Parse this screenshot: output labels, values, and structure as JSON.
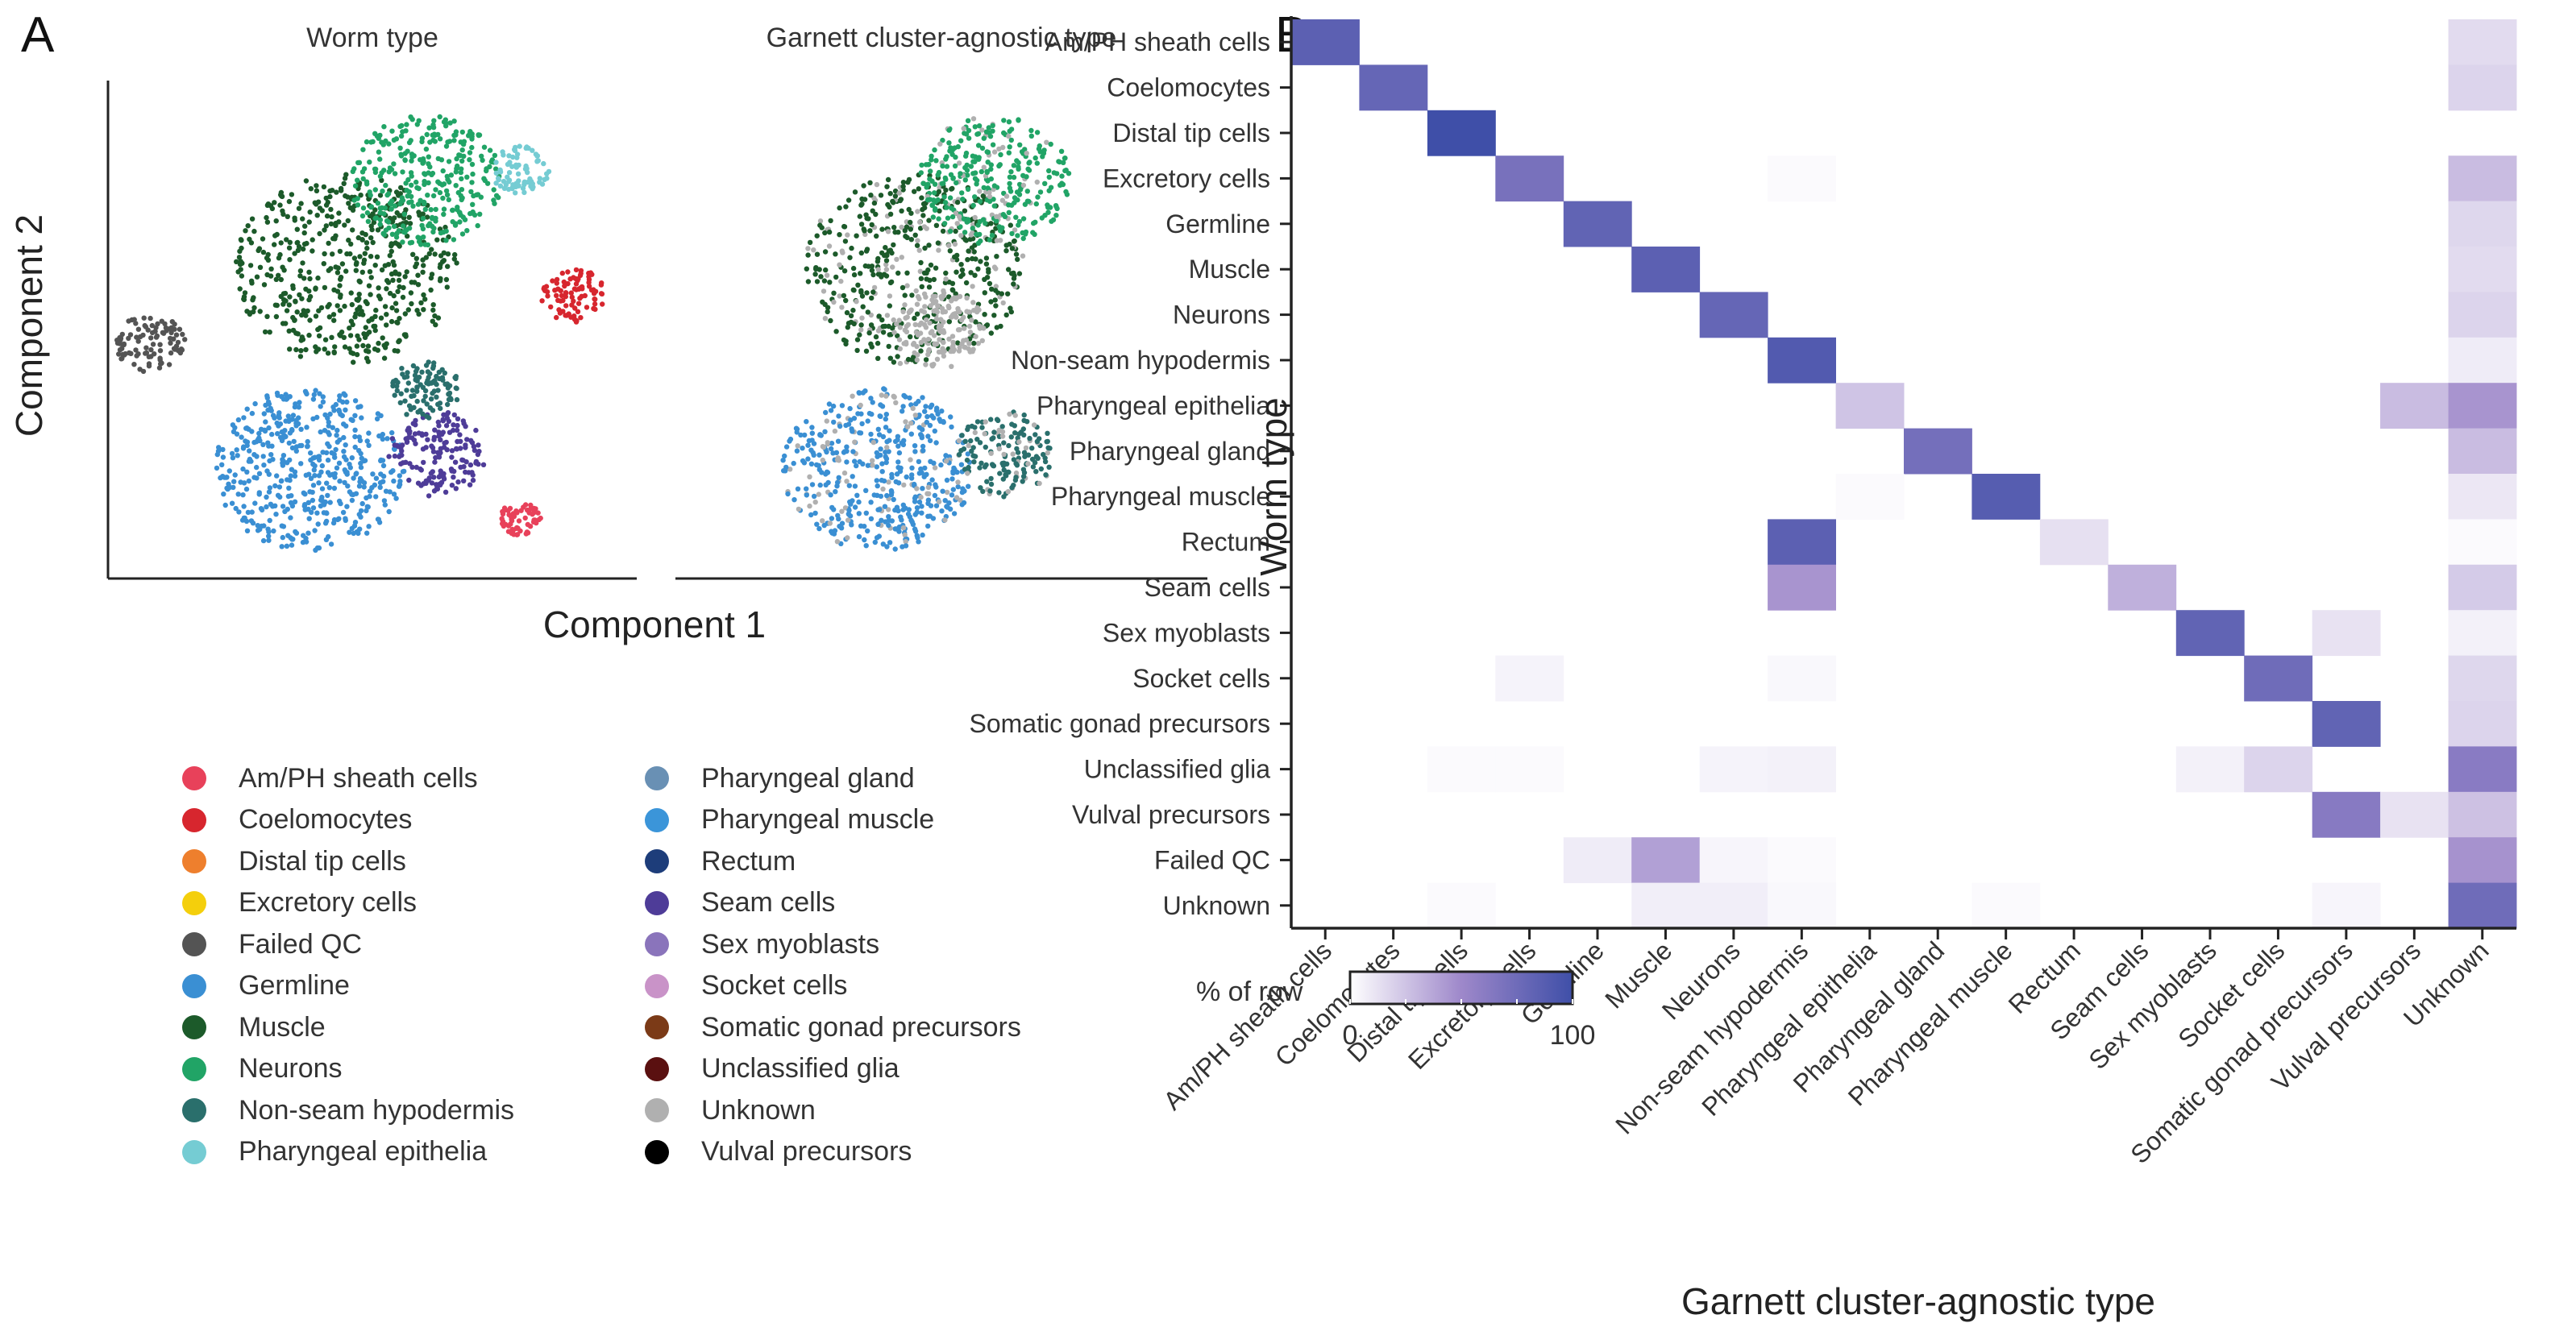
{
  "panel_a": {
    "label": "A",
    "titles": [
      "Worm type",
      "Garnett cluster-agnostic type"
    ],
    "xlabel": "Component 1",
    "ylabel": "Component 2"
  },
  "panel_b": {
    "label": "B",
    "colorbar": {
      "title": "% of row",
      "min_label": "0",
      "max_label": "100",
      "low_color": "#ffffff",
      "high_color": "#3f4fa8"
    }
  },
  "legend": {
    "items": [
      {
        "label": "Am/PH sheath cells",
        "color": "#e8415a"
      },
      {
        "label": "Coelomocytes",
        "color": "#d7262e"
      },
      {
        "label": "Distal tip cells",
        "color": "#ee7f2d"
      },
      {
        "label": "Excretory cells",
        "color": "#f4cf0c"
      },
      {
        "label": "Failed QC",
        "color": "#545454"
      },
      {
        "label": "Germline",
        "color": "#3a8fd3"
      },
      {
        "label": "Muscle",
        "color": "#1c5a2a"
      },
      {
        "label": "Neurons",
        "color": "#21a466"
      },
      {
        "label": "Non-seam hypodermis",
        "color": "#2a6f6c"
      },
      {
        "label": "Pharyngeal epithelia",
        "color": "#75ccd3"
      },
      {
        "label": "Pharyngeal gland",
        "color": "#6990b4"
      },
      {
        "label": "Pharyngeal muscle",
        "color": "#3b95d9"
      },
      {
        "label": "Rectum",
        "color": "#1d3d7a"
      },
      {
        "label": "Seam cells",
        "color": "#4e3c98"
      },
      {
        "label": "Sex myoblasts",
        "color": "#8a74bb"
      },
      {
        "label": "Socket cells",
        "color": "#c993c8"
      },
      {
        "label": "Somatic gonad precursors",
        "color": "#7b3a17"
      },
      {
        "label": "Unclassified glia",
        "color": "#5a1010"
      },
      {
        "label": "Unknown",
        "color": "#b0b0b0"
      },
      {
        "label": "Vulval precursors",
        "color": "#000000"
      }
    ]
  },
  "chart_data": [
    {
      "type": "scatter",
      "title": "Worm type",
      "xlabel": "Component 1",
      "ylabel": "Component 2",
      "colored_by": "Worm type",
      "clusters": [
        {
          "label": "Muscle",
          "x": 45,
          "y": 62,
          "size": 3000
        },
        {
          "label": "Neurons",
          "x": 60,
          "y": 80,
          "size": 1400
        },
        {
          "label": "Germline",
          "x": 38,
          "y": 22,
          "size": 2200
        },
        {
          "label": "Seam cells",
          "x": 62,
          "y": 25,
          "size": 600
        },
        {
          "label": "Failed QC",
          "x": 8,
          "y": 47,
          "size": 300
        },
        {
          "label": "Coelomocytes",
          "x": 88,
          "y": 57,
          "size": 250
        },
        {
          "label": "Pharyngeal epithelia",
          "x": 78,
          "y": 82,
          "size": 200
        },
        {
          "label": "Non-seam hypodermis",
          "x": 60,
          "y": 38,
          "size": 300
        },
        {
          "label": "Am/PH sheath cells",
          "x": 78,
          "y": 12,
          "size": 100
        }
      ]
    },
    {
      "type": "scatter",
      "title": "Garnett cluster-agnostic type",
      "xlabel": "Component 1",
      "ylabel": "Component 2",
      "colored_by": "Garnett cluster-agnostic type",
      "clusters": [
        {
          "label": "Muscle",
          "x": 45,
          "y": 62,
          "size": 3000
        },
        {
          "label": "Neurons",
          "x": 60,
          "y": 80,
          "size": 1400
        },
        {
          "label": "Germline",
          "x": 38,
          "y": 22,
          "size": 2200
        },
        {
          "label": "Non-seam hypodermis",
          "x": 62,
          "y": 25,
          "size": 600
        },
        {
          "label": "Unknown",
          "x": 50,
          "y": 50,
          "size": 500
        }
      ]
    },
    {
      "type": "heatmap",
      "xlabel": "Garnett cluster-agnostic type",
      "ylabel": "Worm type",
      "rows": [
        "Am/PH sheath cells",
        "Coelomocytes",
        "Distal tip cells",
        "Excretory cells",
        "Germline",
        "Muscle",
        "Neurons",
        "Non-seam hypodermis",
        "Pharyngeal epithelia",
        "Pharyngeal gland",
        "Pharyngeal muscle",
        "Rectum",
        "Seam cells",
        "Sex myoblasts",
        "Socket cells",
        "Somatic gonad precursors",
        "Unclassified glia",
        "Vulval precursors",
        "Failed QC",
        "Unknown"
      ],
      "columns": [
        "Am/PH sheath cells",
        "Coelomocytes",
        "Distal tip cells",
        "Excretory cells",
        "Germline",
        "Muscle",
        "Neurons",
        "Non-seam hypodermis",
        "Pharyngeal epithelia",
        "Pharyngeal gland",
        "Pharyngeal muscle",
        "Rectum",
        "Seam cells",
        "Sex myoblasts",
        "Socket cells",
        "Somatic gonad precursors",
        "Vulval precursors",
        "Unknown"
      ],
      "values": [
        [
          85,
          0,
          0,
          0,
          0,
          0,
          0,
          0,
          0,
          0,
          0,
          0,
          0,
          0,
          0,
          0,
          0,
          15
        ],
        [
          0,
          80,
          0,
          0,
          0,
          0,
          0,
          0,
          0,
          0,
          0,
          0,
          0,
          0,
          0,
          0,
          0,
          18
        ],
        [
          0,
          0,
          100,
          0,
          0,
          0,
          0,
          0,
          0,
          0,
          0,
          0,
          0,
          0,
          0,
          0,
          0,
          0
        ],
        [
          0,
          0,
          0,
          70,
          0,
          0,
          0,
          2,
          0,
          0,
          0,
          0,
          0,
          0,
          0,
          0,
          0,
          28
        ],
        [
          0,
          0,
          0,
          0,
          82,
          0,
          0,
          0,
          0,
          0,
          0,
          0,
          0,
          0,
          0,
          0,
          0,
          17
        ],
        [
          0,
          0,
          0,
          0,
          0,
          85,
          0,
          0,
          0,
          0,
          0,
          0,
          0,
          0,
          0,
          0,
          0,
          15
        ],
        [
          0,
          0,
          0,
          0,
          0,
          0,
          80,
          0,
          0,
          0,
          0,
          0,
          0,
          0,
          0,
          0,
          0,
          18
        ],
        [
          0,
          0,
          0,
          0,
          0,
          0,
          0,
          90,
          0,
          0,
          0,
          0,
          0,
          0,
          0,
          0,
          0,
          8
        ],
        [
          0,
          0,
          0,
          0,
          0,
          0,
          0,
          0,
          25,
          0,
          0,
          0,
          0,
          0,
          0,
          0,
          28,
          45
        ],
        [
          0,
          0,
          0,
          0,
          0,
          0,
          0,
          0,
          0,
          72,
          0,
          0,
          0,
          0,
          0,
          0,
          0,
          28
        ],
        [
          0,
          0,
          0,
          0,
          0,
          0,
          0,
          0,
          2,
          0,
          88,
          0,
          0,
          0,
          0,
          0,
          0,
          10
        ],
        [
          0,
          0,
          0,
          0,
          0,
          0,
          0,
          85,
          0,
          0,
          0,
          13,
          0,
          0,
          0,
          0,
          0,
          2
        ],
        [
          0,
          0,
          0,
          0,
          0,
          0,
          0,
          45,
          0,
          0,
          0,
          0,
          33,
          0,
          0,
          0,
          0,
          22
        ],
        [
          0,
          0,
          0,
          0,
          0,
          0,
          0,
          0,
          0,
          0,
          0,
          0,
          0,
          82,
          0,
          12,
          0,
          6
        ],
        [
          0,
          0,
          0,
          5,
          0,
          0,
          0,
          3,
          0,
          0,
          0,
          0,
          0,
          0,
          75,
          0,
          0,
          17
        ],
        [
          0,
          0,
          0,
          0,
          0,
          0,
          0,
          0,
          0,
          0,
          0,
          0,
          0,
          0,
          0,
          82,
          0,
          18
        ],
        [
          0,
          0,
          2,
          2,
          0,
          0,
          5,
          6,
          0,
          0,
          0,
          0,
          0,
          6,
          18,
          0,
          0,
          61
        ],
        [
          0,
          0,
          0,
          0,
          0,
          0,
          0,
          0,
          0,
          0,
          0,
          0,
          0,
          0,
          0,
          62,
          12,
          26
        ],
        [
          0,
          0,
          0,
          0,
          8,
          40,
          4,
          2,
          0,
          0,
          0,
          0,
          0,
          0,
          0,
          0,
          0,
          46
        ],
        [
          0,
          0,
          2,
          0,
          0,
          7,
          7,
          3,
          0,
          0,
          2,
          0,
          0,
          0,
          0,
          4,
          0,
          75
        ]
      ],
      "value_range": [
        0,
        100
      ],
      "colorbar_title": "% of row"
    }
  ]
}
